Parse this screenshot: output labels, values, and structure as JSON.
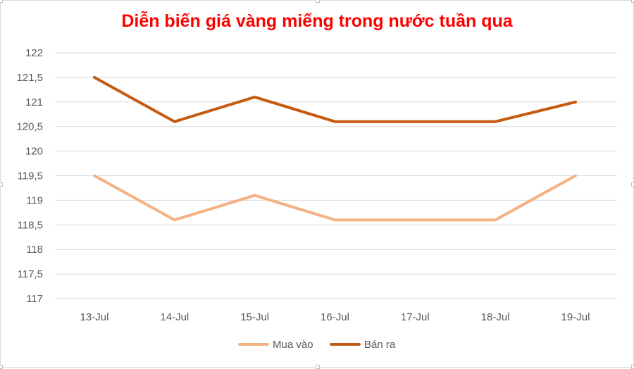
{
  "chart_data": {
    "type": "line",
    "title": "Diễn biến giá vàng miếng trong nước tuần qua",
    "categories": [
      "13-Jul",
      "14-Jul",
      "15-Jul",
      "16-Jul",
      "17-Jul",
      "18-Jul",
      "19-Jul"
    ],
    "series": [
      {
        "name": "Mua vào",
        "values": [
          119.5,
          118.6,
          119.1,
          118.6,
          118.6,
          118.6,
          119.5
        ],
        "color": "#f4b183"
      },
      {
        "name": "Bán ra",
        "values": [
          121.5,
          120.6,
          121.1,
          120.6,
          120.6,
          120.6,
          121.0
        ],
        "color": "#c55a11"
      }
    ],
    "ylim": [
      117,
      122
    ],
    "yticks": [
      "117",
      "117,5",
      "118",
      "118,5",
      "119",
      "119,5",
      "120",
      "120,5",
      "121",
      "121,5",
      "122"
    ],
    "grid": true,
    "legend": "bottom",
    "title_color": "#ff0000",
    "grid_color": "#d9d9d9",
    "axis_text_color": "#595959"
  }
}
